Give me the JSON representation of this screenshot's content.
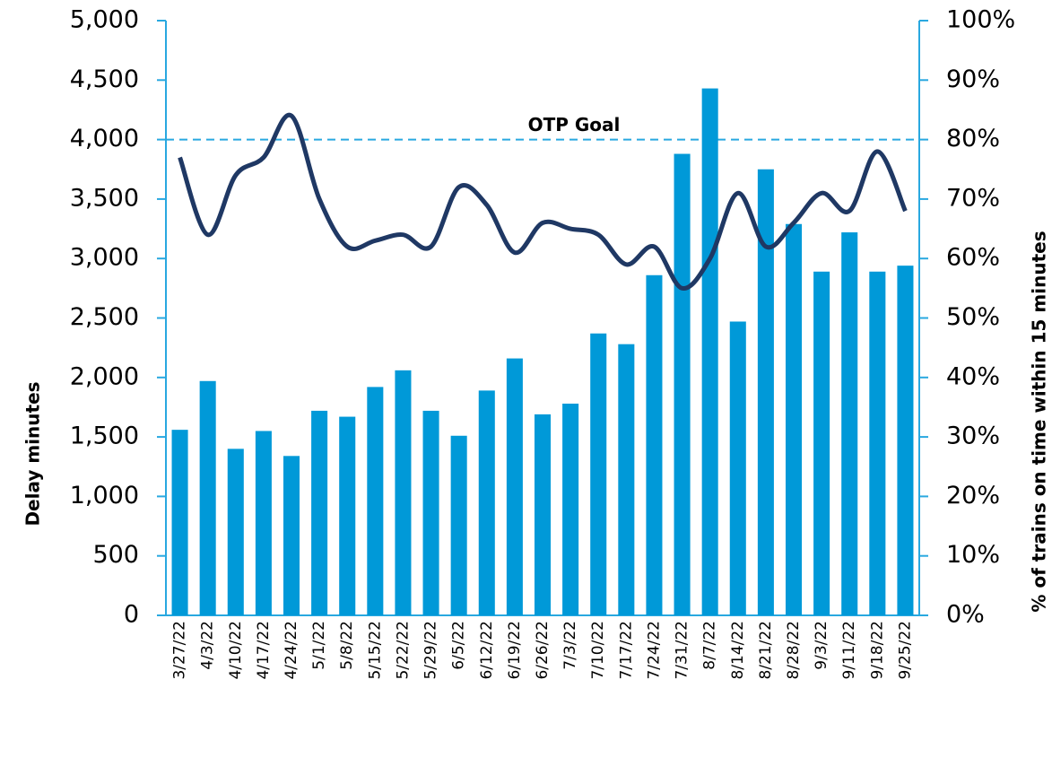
{
  "chart_data": {
    "type": "bar",
    "categories": [
      "3/27/22",
      "4/3/22",
      "4/10/22",
      "4/17/22",
      "4/24/22",
      "5/1/22",
      "5/8/22",
      "5/15/22",
      "5/22/22",
      "5/29/22",
      "6/5/22",
      "6/12/22",
      "6/19/22",
      "6/26/22",
      "7/3/22",
      "7/10/22",
      "7/17/22",
      "7/24/22",
      "7/31/22",
      "8/7/22",
      "8/14/22",
      "8/21/22",
      "8/28/22",
      "9/3/22",
      "9/11/22",
      "9/18/22",
      "9/25/22"
    ],
    "series": [
      {
        "name": "Delay minutes",
        "color": "#0099d8",
        "type": "bar",
        "values": [
          1560,
          1970,
          1400,
          1550,
          1340,
          1720,
          1670,
          1920,
          2060,
          1720,
          1510,
          1890,
          2160,
          1690,
          1780,
          2370,
          2280,
          2860,
          3880,
          4430,
          2470,
          3750,
          3290,
          2890,
          3220,
          2890,
          2940
        ]
      },
      {
        "name": "% of trains on time within 15 minutes",
        "color": "#1f3864",
        "type": "line",
        "axis": "y2",
        "values": [
          77,
          64,
          74,
          77,
          84,
          70,
          62,
          63,
          64,
          62,
          72,
          69,
          61,
          66,
          65,
          64,
          59,
          62,
          55,
          60,
          71,
          62,
          66,
          71,
          68,
          78,
          68
        ]
      }
    ],
    "ylabel": "Delay minutes",
    "y2label": "% of trains on time within 15 minutes",
    "ylim": [
      0,
      5000
    ],
    "yticks": [
      0,
      {
        "value": 500,
        "label": "500"
      },
      {
        "value": 1000,
        "label": "1,000"
      },
      {
        "value": 1500,
        "label": "1,500"
      },
      {
        "value": 2000,
        "label": "2,000"
      },
      {
        "value": 2500,
        "label": "2,500"
      },
      {
        "value": 3000,
        "label": "3,000"
      },
      {
        "value": 3500,
        "label": "3,500"
      },
      {
        "value": 4000,
        "label": "4,000"
      },
      {
        "value": 4500,
        "label": "4,500"
      },
      {
        "value": 5000,
        "label": "5,000"
      }
    ],
    "y2lim": [
      0,
      100
    ],
    "y2ticks": [
      {
        "value": 0,
        "label": "0%"
      },
      {
        "value": 10,
        "label": "10%"
      },
      {
        "value": 20,
        "label": "20%"
      },
      {
        "value": 30,
        "label": "30%"
      },
      {
        "value": 40,
        "label": "40%"
      },
      {
        "value": 50,
        "label": "50%"
      },
      {
        "value": 60,
        "label": "60%"
      },
      {
        "value": 70,
        "label": "70%"
      },
      {
        "value": 80,
        "label": "80%"
      },
      {
        "value": 90,
        "label": "90%"
      },
      {
        "value": 100,
        "label": "100%"
      }
    ],
    "goal": {
      "label": "OTP Goal",
      "value": 80,
      "axis": "y2",
      "color": "#29a8e0"
    },
    "axis_color": "#29a8e0"
  }
}
